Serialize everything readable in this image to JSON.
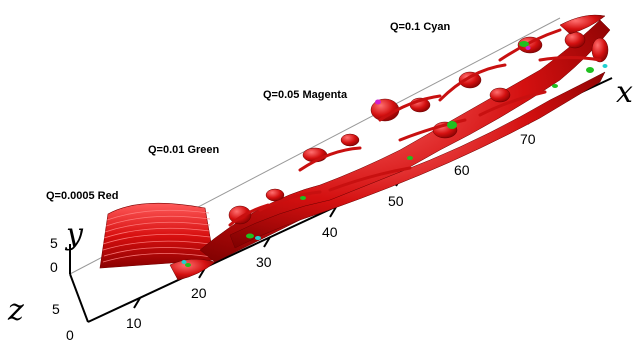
{
  "annotations": {
    "red": "Q=0.0005 Red",
    "green": "Q=0.01 Green",
    "magenta": "Q=0.05 Magenta",
    "cyan": "Q=0.1 Cyan"
  },
  "axes": {
    "x": {
      "name": "x",
      "ticks": [
        "10",
        "20",
        "30",
        "40",
        "50",
        "60",
        "70"
      ]
    },
    "y": {
      "name": "y",
      "ticks": [
        "5",
        "0"
      ]
    },
    "z": {
      "name": "z",
      "ticks": [
        "5",
        "0"
      ]
    }
  },
  "colors": {
    "red": "#e01010",
    "green": "#1fbf1f",
    "magenta": "#d020d0",
    "cyan": "#20d0d0"
  }
}
